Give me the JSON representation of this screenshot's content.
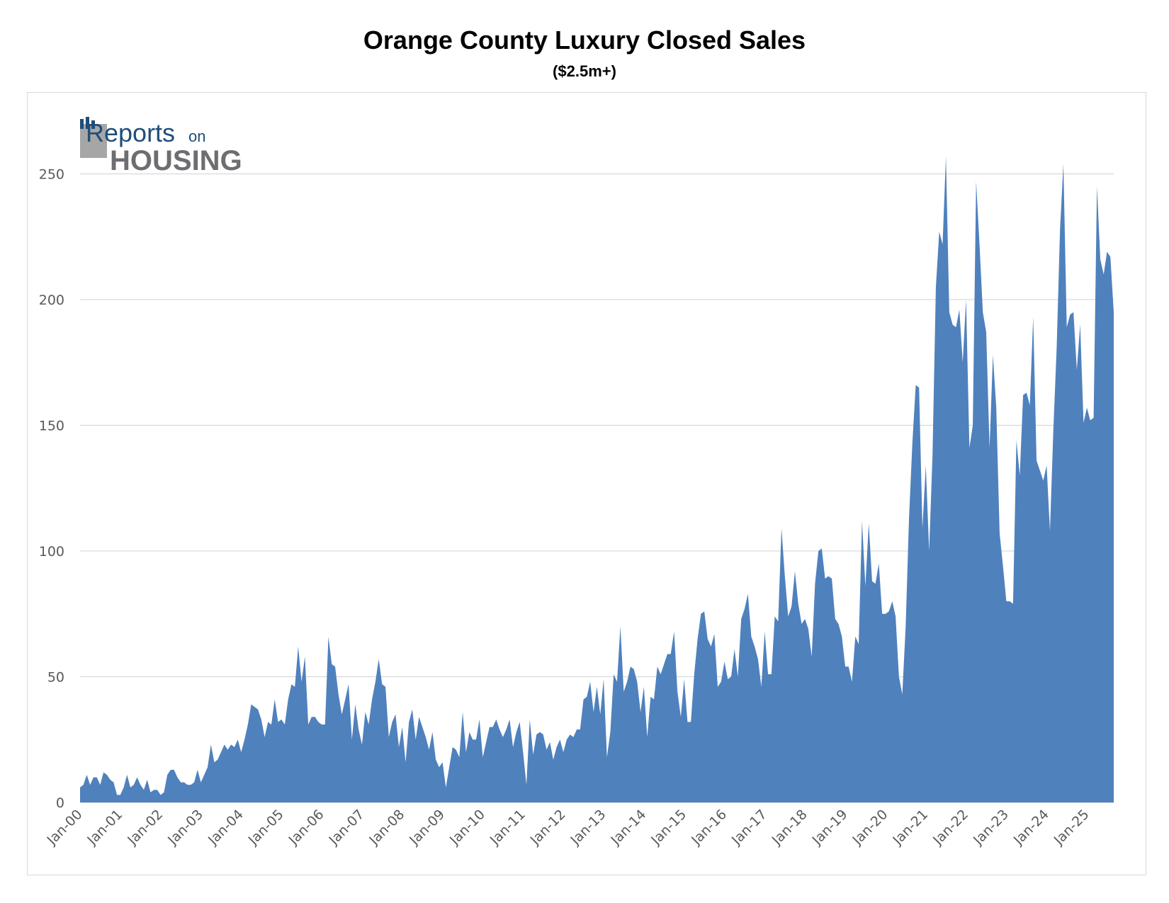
{
  "logo": {
    "word1": "Reports",
    "word2": "on",
    "word3": "HOUSING"
  },
  "colors": {
    "area": "#4f81bd",
    "grid": "#d9d9d9",
    "tick_text": "#595959",
    "logo_blue": "#1f4e79",
    "logo_gray": "#6d6e71"
  },
  "chart_data": {
    "type": "area",
    "title": "Orange County Luxury Closed Sales",
    "subtitle": "($2.5m+)",
    "xlabel": "",
    "ylabel": "",
    "ylim": [
      0,
      260
    ],
    "yticks": [
      0,
      50,
      100,
      150,
      200,
      250
    ],
    "grid": true,
    "x_start": "Jan-00",
    "x_frequency": "monthly",
    "x_tick_labels": [
      "Jan-00",
      "Jan-01",
      "Jan-02",
      "Jan-03",
      "Jan-04",
      "Jan-05",
      "Jan-06",
      "Jan-07",
      "Jan-08",
      "Jan-09",
      "Jan-10",
      "Jan-11",
      "Jan-12",
      "Jan-13",
      "Jan-14",
      "Jan-15",
      "Jan-16",
      "Jan-17",
      "Jan-18",
      "Jan-19",
      "Jan-20",
      "Jan-21",
      "Jan-22",
      "Jan-23",
      "Jan-24",
      "Jan-25"
    ],
    "values": [
      6,
      7,
      11,
      7,
      10,
      10,
      7,
      12,
      11,
      9,
      8,
      3,
      3,
      6,
      11,
      6,
      7,
      10,
      7,
      5,
      9,
      4,
      5,
      5,
      3,
      4,
      11,
      13,
      13,
      10,
      8,
      8,
      7,
      7,
      8,
      13,
      8,
      11,
      14,
      23,
      16,
      17,
      20,
      23,
      21,
      23,
      22,
      25,
      20,
      25,
      31,
      39,
      38,
      37,
      33,
      26,
      32,
      31,
      41,
      32,
      33,
      31,
      41,
      47,
      46,
      62,
      48,
      58,
      31,
      34,
      34,
      32,
      31,
      31,
      66,
      55,
      54,
      43,
      35,
      41,
      47,
      25,
      39,
      29,
      23,
      36,
      31,
      41,
      48,
      57,
      47,
      46,
      26,
      32,
      35,
      22,
      30,
      16,
      32,
      37,
      25,
      34,
      30,
      26,
      21,
      28,
      17,
      14,
      16,
      6,
      14,
      22,
      21,
      18,
      36,
      20,
      28,
      25,
      25,
      33,
      18,
      24,
      30,
      30,
      33,
      29,
      26,
      29,
      33,
      22,
      28,
      32,
      20,
      7,
      33,
      19,
      27,
      28,
      27,
      21,
      24,
      17,
      22,
      25,
      20,
      25,
      27,
      26,
      29,
      29,
      41,
      42,
      48,
      36,
      46,
      35,
      49,
      18,
      28,
      51,
      48,
      70,
      44,
      48,
      54,
      53,
      48,
      36,
      46,
      26,
      42,
      41,
      54,
      51,
      55,
      59,
      59,
      68,
      44,
      34,
      49,
      32,
      32,
      51,
      65,
      75,
      76,
      65,
      62,
      67,
      46,
      48,
      56,
      49,
      50,
      61,
      50,
      73,
      77,
      83,
      66,
      62,
      57,
      46,
      68,
      51,
      51,
      74,
      72,
      109,
      90,
      74,
      78,
      92,
      79,
      71,
      73,
      69,
      58,
      87,
      100,
      101,
      89,
      90,
      89,
      73,
      71,
      66,
      54,
      54,
      48,
      66,
      63,
      112,
      86,
      111,
      88,
      87,
      95,
      75,
      75,
      76,
      80,
      74,
      50,
      43,
      70,
      113,
      143,
      166,
      165,
      109,
      134,
      100,
      138,
      205,
      227,
      222,
      257,
      195,
      190,
      189,
      196,
      175,
      200,
      141,
      150,
      247,
      222,
      195,
      187,
      141,
      178,
      157,
      107,
      94,
      80,
      80,
      79,
      144,
      130,
      162,
      163,
      158,
      193,
      136,
      132,
      128,
      134,
      108,
      148,
      181,
      228,
      254,
      189,
      194,
      195,
      172,
      190,
      151,
      157,
      152,
      153,
      245,
      216,
      210,
      219,
      217,
      195
    ]
  }
}
